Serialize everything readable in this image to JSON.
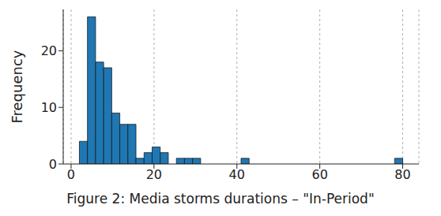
{
  "chart_data": {
    "type": "histogram",
    "title": "Figure 2: Media storms durations – \"In-Period\"",
    "y_label": "Frequency",
    "bins": [
      2,
      3.95,
      5.9,
      7.85,
      9.8,
      11.75,
      13.7,
      15.65,
      17.6,
      19.55,
      21.5,
      23.45,
      25.4,
      27.35,
      29.3,
      31.25,
      33.2,
      35.15,
      37.1,
      39.05,
      41,
      42.95,
      44.9,
      46.85,
      48.8,
      50.75,
      52.7,
      54.65,
      56.6,
      58.55,
      60.5,
      62.45,
      64.4,
      66.35,
      68.3,
      70.25,
      72.2,
      74.15,
      76.1,
      78.05,
      80
    ],
    "counts": [
      4,
      26,
      18,
      17,
      9,
      7,
      7,
      1,
      2,
      3,
      2,
      0,
      1,
      1,
      1,
      0,
      0,
      0,
      0,
      0,
      1,
      0,
      0,
      0,
      0,
      0,
      0,
      0,
      0,
      0,
      0,
      0,
      0,
      0,
      0,
      0,
      0,
      0,
      0,
      1
    ],
    "color": "#1f77b4",
    "xlim": [
      -1.9,
      83.9
    ],
    "ylim": [
      0,
      27.3
    ],
    "xticks": [
      0,
      20,
      40,
      60,
      80
    ],
    "yticks": [
      0,
      10,
      20
    ],
    "grid": true
  }
}
